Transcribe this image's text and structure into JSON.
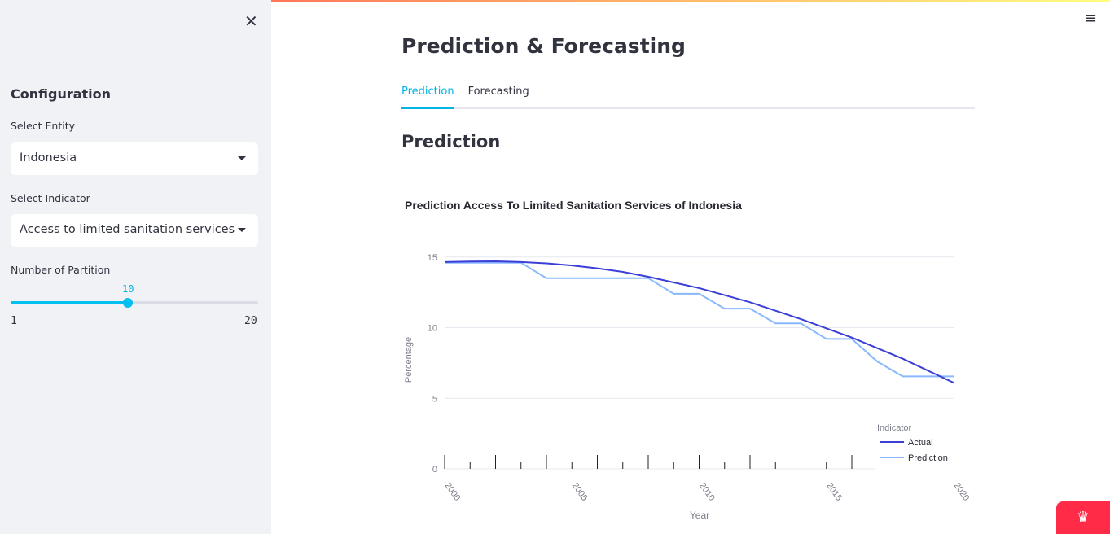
{
  "sidebar": {
    "heading": "Configuration",
    "entity_label": "Select Entity",
    "entity_value": "Indonesia",
    "indicator_label": "Select Indicator",
    "indicator_value": "Access to limited sanitation services",
    "partition_label": "Number of Partition",
    "partition_value": "10",
    "partition_min": "1",
    "partition_max": "20",
    "partition_value_num": 10,
    "close_icon": "✕"
  },
  "header": {
    "title": "Prediction & Forecasting",
    "menu_icon": "≡"
  },
  "tabs": [
    {
      "label": "Prediction",
      "active": true
    },
    {
      "label": "Forecasting",
      "active": false
    }
  ],
  "section_title": "Prediction",
  "colors": {
    "accent": "#00c0f2",
    "actual": "#3b3fd6",
    "prediction": "#8ab8ff"
  },
  "chart_data": {
    "type": "line",
    "title": "Prediction Access To Limited Sanitation Services of Indonesia",
    "xlabel": "Year",
    "ylabel": "Percentage",
    "xlim": [
      2000,
      2020
    ],
    "ylim": [
      0,
      16
    ],
    "x_ticks": [
      "2000",
      "2005",
      "2010",
      "2015",
      "2020"
    ],
    "y_ticks": [
      "0",
      "5",
      "10",
      "15"
    ],
    "legend_title": "Indicator",
    "legend_position": "bottom-right",
    "x": [
      2000,
      2001,
      2002,
      2003,
      2004,
      2005,
      2006,
      2007,
      2008,
      2009,
      2010,
      2011,
      2012,
      2013,
      2014,
      2015,
      2016,
      2017,
      2018,
      2019,
      2020
    ],
    "series": [
      {
        "name": "Actual",
        "values": [
          14.65,
          14.68,
          14.7,
          14.65,
          14.55,
          14.4,
          14.2,
          13.95,
          13.6,
          13.2,
          12.8,
          12.3,
          11.8,
          11.2,
          10.6,
          9.95,
          9.3,
          8.55,
          7.8,
          6.95,
          6.1
        ]
      },
      {
        "name": "Prediction",
        "values": [
          14.6,
          14.6,
          14.6,
          14.6,
          13.5,
          13.5,
          13.5,
          13.5,
          13.5,
          12.4,
          12.4,
          11.35,
          11.35,
          10.3,
          10.3,
          9.2,
          9.2,
          7.6,
          6.55,
          6.55,
          6.55
        ]
      }
    ]
  }
}
